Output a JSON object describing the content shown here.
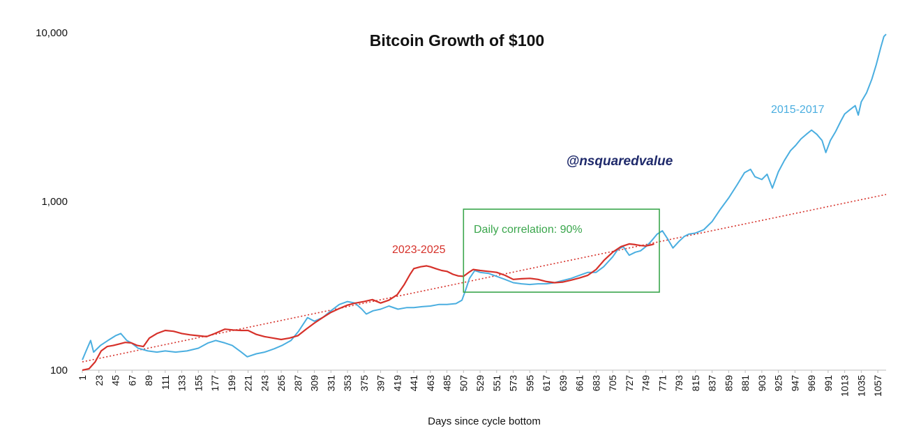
{
  "chart_data": {
    "type": "line",
    "title": "Bitcoin Growth of $100",
    "xlabel": "Days since cycle bottom",
    "ylabel": "",
    "y_scale": "log",
    "ylim": [
      100,
      10000
    ],
    "xlim": [
      1,
      1068
    ],
    "y_ticks": [
      {
        "value": 100,
        "label": "100"
      },
      {
        "value": 1000,
        "label": "1,000"
      },
      {
        "value": 10000,
        "label": "10,000"
      }
    ],
    "x_ticks": [
      1,
      23,
      45,
      67,
      89,
      111,
      133,
      155,
      177,
      199,
      221,
      243,
      265,
      287,
      309,
      331,
      353,
      375,
      397,
      419,
      441,
      463,
      485,
      507,
      529,
      551,
      573,
      595,
      617,
      639,
      661,
      683,
      705,
      727,
      749,
      771,
      793,
      815,
      837,
      859,
      881,
      903,
      925,
      947,
      969,
      991,
      1013,
      1035,
      1057
    ],
    "grid": false,
    "series": [
      {
        "name": "2015-2017",
        "color": "#4aaee0",
        "points": [
          [
            1,
            115
          ],
          [
            6,
            130
          ],
          [
            12,
            150
          ],
          [
            16,
            128
          ],
          [
            25,
            140
          ],
          [
            35,
            150
          ],
          [
            45,
            160
          ],
          [
            52,
            165
          ],
          [
            60,
            150
          ],
          [
            66,
            145
          ],
          [
            75,
            135
          ],
          [
            88,
            130
          ],
          [
            100,
            128
          ],
          [
            111,
            130
          ],
          [
            125,
            128
          ],
          [
            140,
            130
          ],
          [
            155,
            135
          ],
          [
            168,
            145
          ],
          [
            178,
            150
          ],
          [
            190,
            145
          ],
          [
            200,
            140
          ],
          [
            212,
            128
          ],
          [
            220,
            120
          ],
          [
            232,
            125
          ],
          [
            243,
            128
          ],
          [
            256,
            134
          ],
          [
            266,
            140
          ],
          [
            278,
            150
          ],
          [
            288,
            170
          ],
          [
            300,
            205
          ],
          [
            309,
            195
          ],
          [
            320,
            205
          ],
          [
            331,
            225
          ],
          [
            342,
            245
          ],
          [
            353,
            255
          ],
          [
            363,
            250
          ],
          [
            372,
            230
          ],
          [
            378,
            215
          ],
          [
            387,
            225
          ],
          [
            397,
            230
          ],
          [
            408,
            240
          ],
          [
            420,
            230
          ],
          [
            432,
            235
          ],
          [
            441,
            235
          ],
          [
            452,
            238
          ],
          [
            463,
            240
          ],
          [
            474,
            245
          ],
          [
            485,
            245
          ],
          [
            497,
            248
          ],
          [
            505,
            260
          ],
          [
            510,
            300
          ],
          [
            515,
            350
          ],
          [
            522,
            390
          ],
          [
            529,
            380
          ],
          [
            540,
            375
          ],
          [
            551,
            360
          ],
          [
            562,
            345
          ],
          [
            573,
            330
          ],
          [
            584,
            325
          ],
          [
            595,
            322
          ],
          [
            606,
            325
          ],
          [
            617,
            325
          ],
          [
            628,
            330
          ],
          [
            639,
            340
          ],
          [
            650,
            350
          ],
          [
            661,
            365
          ],
          [
            672,
            380
          ],
          [
            683,
            380
          ],
          [
            693,
            410
          ],
          [
            705,
            470
          ],
          [
            712,
            520
          ],
          [
            719,
            540
          ],
          [
            727,
            480
          ],
          [
            735,
            500
          ],
          [
            742,
            510
          ],
          [
            749,
            540
          ],
          [
            756,
            580
          ],
          [
            764,
            640
          ],
          [
            771,
            670
          ],
          [
            778,
            600
          ],
          [
            785,
            530
          ],
          [
            793,
            580
          ],
          [
            800,
            620
          ],
          [
            806,
            640
          ],
          [
            815,
            650
          ],
          [
            826,
            680
          ],
          [
            837,
            760
          ],
          [
            848,
            900
          ],
          [
            859,
            1050
          ],
          [
            870,
            1250
          ],
          [
            880,
            1480
          ],
          [
            888,
            1550
          ],
          [
            894,
            1400
          ],
          [
            903,
            1350
          ],
          [
            910,
            1450
          ],
          [
            917,
            1200
          ],
          [
            925,
            1500
          ],
          [
            933,
            1750
          ],
          [
            941,
            2000
          ],
          [
            948,
            2150
          ],
          [
            955,
            2350
          ],
          [
            962,
            2500
          ],
          [
            969,
            2650
          ],
          [
            976,
            2500
          ],
          [
            983,
            2300
          ],
          [
            988,
            1950
          ],
          [
            994,
            2300
          ],
          [
            1001,
            2600
          ],
          [
            1008,
            3000
          ],
          [
            1013,
            3300
          ],
          [
            1020,
            3500
          ],
          [
            1027,
            3700
          ],
          [
            1031,
            3250
          ],
          [
            1035,
            3900
          ],
          [
            1042,
            4400
          ],
          [
            1049,
            5300
          ],
          [
            1055,
            6500
          ],
          [
            1061,
            8200
          ],
          [
            1065,
            9500
          ],
          [
            1068,
            9800
          ]
        ]
      },
      {
        "name": "2023-2025",
        "color": "#d6312a",
        "points": [
          [
            1,
            100
          ],
          [
            10,
            102
          ],
          [
            18,
            112
          ],
          [
            26,
            130
          ],
          [
            34,
            138
          ],
          [
            42,
            140
          ],
          [
            50,
            143
          ],
          [
            58,
            146
          ],
          [
            66,
            145
          ],
          [
            74,
            140
          ],
          [
            82,
            138
          ],
          [
            90,
            155
          ],
          [
            100,
            165
          ],
          [
            111,
            172
          ],
          [
            122,
            170
          ],
          [
            133,
            165
          ],
          [
            144,
            162
          ],
          [
            155,
            160
          ],
          [
            166,
            158
          ],
          [
            177,
            165
          ],
          [
            190,
            175
          ],
          [
            201,
            173
          ],
          [
            212,
            172
          ],
          [
            221,
            172
          ],
          [
            232,
            163
          ],
          [
            243,
            158
          ],
          [
            254,
            155
          ],
          [
            265,
            152
          ],
          [
            276,
            155
          ],
          [
            287,
            160
          ],
          [
            298,
            175
          ],
          [
            309,
            190
          ],
          [
            320,
            205
          ],
          [
            331,
            220
          ],
          [
            342,
            232
          ],
          [
            353,
            243
          ],
          [
            364,
            250
          ],
          [
            375,
            255
          ],
          [
            386,
            262
          ],
          [
            397,
            250
          ],
          [
            408,
            260
          ],
          [
            419,
            280
          ],
          [
            428,
            320
          ],
          [
            436,
            370
          ],
          [
            441,
            400
          ],
          [
            450,
            410
          ],
          [
            458,
            415
          ],
          [
            463,
            410
          ],
          [
            470,
            400
          ],
          [
            478,
            390
          ],
          [
            485,
            385
          ],
          [
            493,
            370
          ],
          [
            500,
            362
          ],
          [
            507,
            360
          ],
          [
            514,
            380
          ],
          [
            520,
            395
          ],
          [
            529,
            390
          ],
          [
            540,
            385
          ],
          [
            551,
            380
          ],
          [
            562,
            365
          ],
          [
            573,
            345
          ],
          [
            584,
            348
          ],
          [
            595,
            350
          ],
          [
            606,
            345
          ],
          [
            617,
            335
          ],
          [
            628,
            330
          ],
          [
            639,
            333
          ],
          [
            650,
            342
          ],
          [
            661,
            352
          ],
          [
            672,
            365
          ],
          [
            683,
            395
          ],
          [
            694,
            450
          ],
          [
            705,
            500
          ],
          [
            716,
            540
          ],
          [
            727,
            560
          ],
          [
            735,
            555
          ],
          [
            742,
            548
          ],
          [
            749,
            545
          ],
          [
            756,
            553
          ],
          [
            760,
            560
          ]
        ]
      }
    ],
    "trendline": {
      "style": "dotted",
      "color": "#d6312a",
      "from": {
        "x": 1,
        "y": 112
      },
      "to": {
        "x": 1068,
        "y": 1100
      }
    },
    "annotations": {
      "series_2015_label": "2015-2017",
      "series_2023_label": "2023-2025",
      "correlation_label": "Daily correlation: 90%",
      "correlation_color": "#3aa64c",
      "correlation_box_x": [
        507,
        767
      ],
      "correlation_box_y": [
        290,
        900
      ],
      "watermark": "@nsquaredvalue"
    }
  }
}
